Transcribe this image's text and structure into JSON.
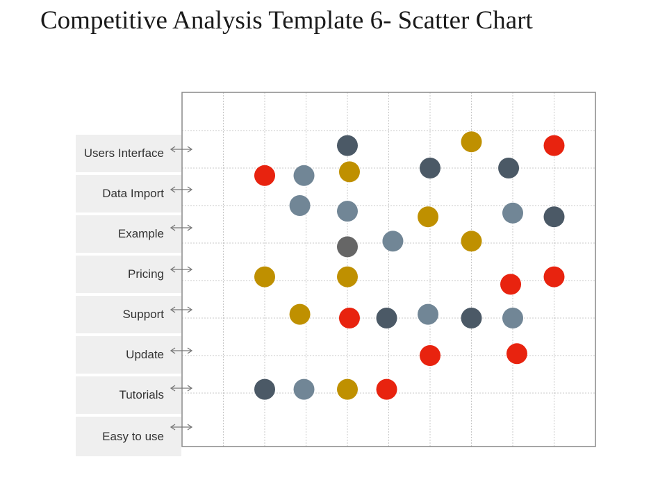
{
  "title": "Competitive Analysis Template 6- Scatter Chart",
  "colors": {
    "slate": "#4b5966",
    "steel": "#718696",
    "gold": "#bf9000",
    "red": "#e8230f",
    "gray": "#666666",
    "grid": "#c8c8c8",
    "border": "#888888",
    "arrow": "#777777"
  },
  "chart_data": {
    "type": "scatter",
    "categories": [
      "Users Interface",
      "Data Import",
      "Example",
      "Pricing",
      "Support",
      "Update",
      "Tutorials",
      "Easy to use"
    ],
    "grid": true,
    "points": [
      {
        "x": 4.0,
        "y": 0.4,
        "color": "slate"
      },
      {
        "x": 7.0,
        "y": 0.3,
        "color": "gold"
      },
      {
        "x": 9.0,
        "y": 0.4,
        "color": "red"
      },
      {
        "x": 2.0,
        "y": 1.2,
        "color": "red"
      },
      {
        "x": 2.95,
        "y": 1.2,
        "color": "steel"
      },
      {
        "x": 4.05,
        "y": 1.1,
        "color": "gold"
      },
      {
        "x": 6.0,
        "y": 1.0,
        "color": "slate"
      },
      {
        "x": 7.9,
        "y": 1.0,
        "color": "slate"
      },
      {
        "x": 2.85,
        "y": 2.0,
        "color": "steel"
      },
      {
        "x": 4.0,
        "y": 2.15,
        "color": "steel"
      },
      {
        "x": 5.95,
        "y": 2.3,
        "color": "gold"
      },
      {
        "x": 8.0,
        "y": 2.2,
        "color": "steel"
      },
      {
        "x": 9.0,
        "y": 2.3,
        "color": "slate"
      },
      {
        "x": 4.0,
        "y": 3.1,
        "color": "gray"
      },
      {
        "x": 5.1,
        "y": 2.95,
        "color": "steel"
      },
      {
        "x": 7.0,
        "y": 2.95,
        "color": "gold"
      },
      {
        "x": 2.0,
        "y": 3.9,
        "color": "gold"
      },
      {
        "x": 4.0,
        "y": 3.9,
        "color": "gold"
      },
      {
        "x": 7.95,
        "y": 4.1,
        "color": "red"
      },
      {
        "x": 9.0,
        "y": 3.9,
        "color": "red"
      },
      {
        "x": 2.85,
        "y": 4.9,
        "color": "gold"
      },
      {
        "x": 4.05,
        "y": 5.0,
        "color": "red"
      },
      {
        "x": 4.95,
        "y": 5.0,
        "color": "slate"
      },
      {
        "x": 5.95,
        "y": 4.9,
        "color": "steel"
      },
      {
        "x": 7.0,
        "y": 5.0,
        "color": "slate"
      },
      {
        "x": 8.0,
        "y": 5.0,
        "color": "steel"
      },
      {
        "x": 6.0,
        "y": 6.0,
        "color": "red"
      },
      {
        "x": 8.1,
        "y": 5.95,
        "color": "red"
      },
      {
        "x": 2.0,
        "y": 6.9,
        "color": "slate"
      },
      {
        "x": 2.95,
        "y": 6.9,
        "color": "steel"
      },
      {
        "x": 4.0,
        "y": 6.9,
        "color": "gold"
      },
      {
        "x": 4.95,
        "y": 6.9,
        "color": "red"
      }
    ]
  }
}
